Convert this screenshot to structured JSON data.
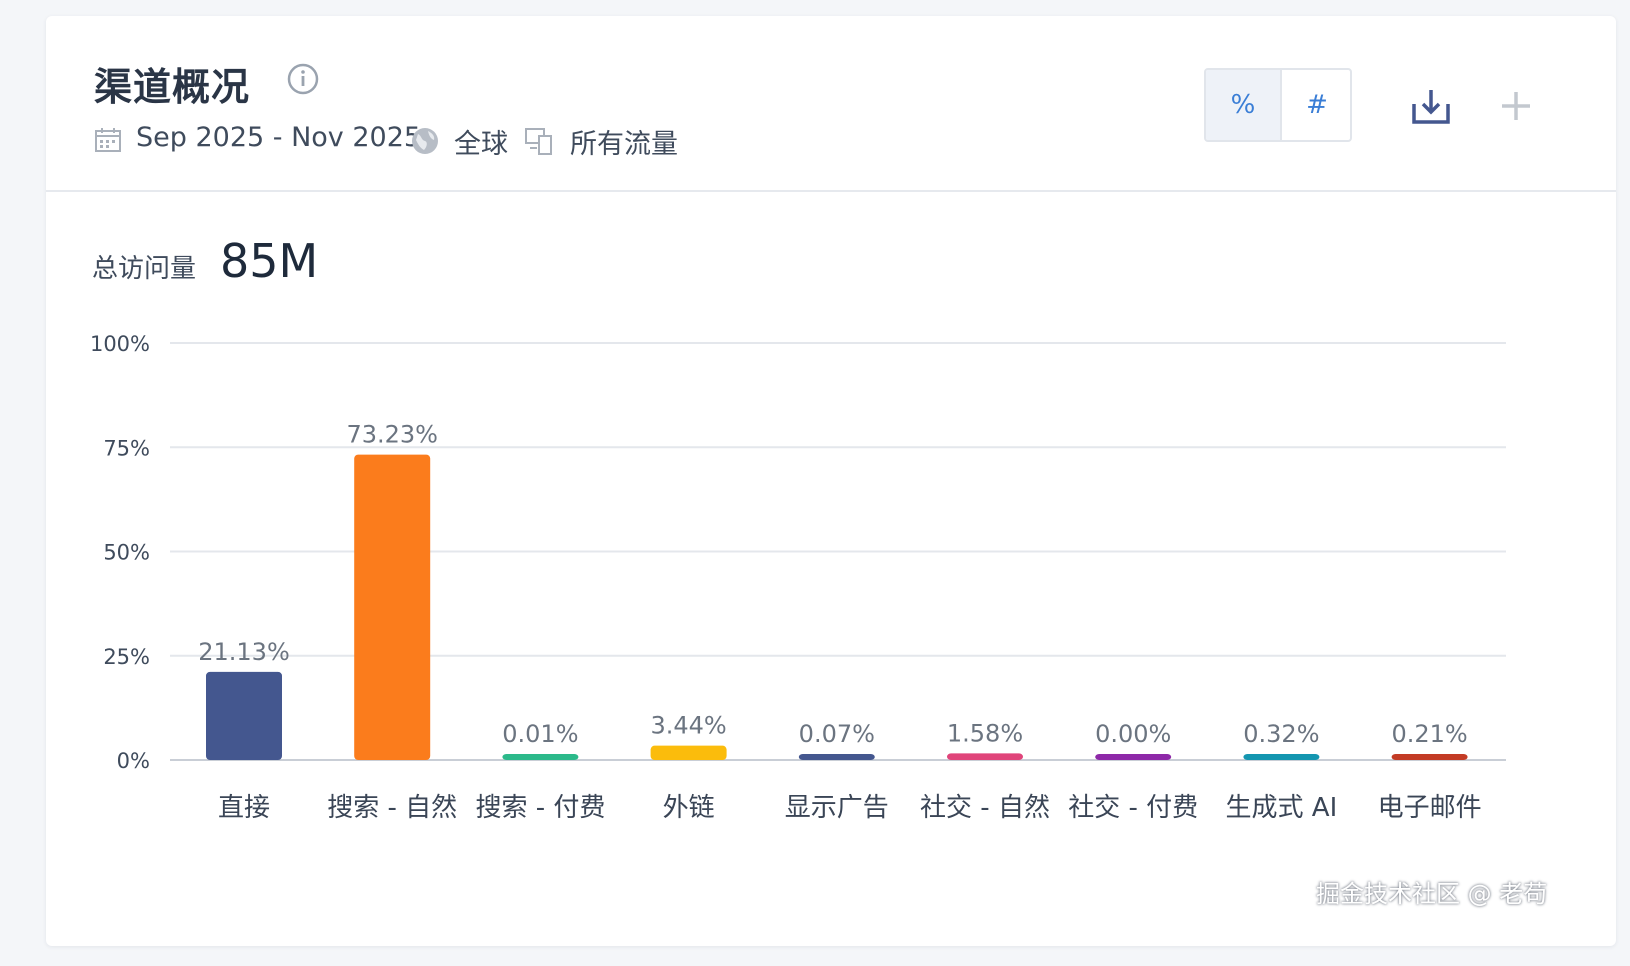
{
  "header": {
    "title": "渠道概况",
    "date_range": "Sep 2025 - Nov 2025",
    "region": "全球",
    "traffic_type": "所有流量",
    "toggle": {
      "percent_label": "%",
      "number_label": "#",
      "active": "percent"
    },
    "icons": [
      "calendar-icon",
      "globe-icon",
      "devices-icon",
      "info-icon",
      "download-icon",
      "plus-icon"
    ]
  },
  "summary": {
    "label": "总访问量",
    "value": "85M"
  },
  "chart_data": {
    "type": "bar",
    "categories": [
      "直接",
      "搜索 - 自然",
      "搜索 - 付费",
      "外链",
      "显示广告",
      "社交 - 自然",
      "社交 - 付费",
      "生成式 AI",
      "电子邮件"
    ],
    "values": [
      21.13,
      73.23,
      0.01,
      3.44,
      0.07,
      1.58,
      0.0,
      0.32,
      0.21
    ],
    "data_labels": [
      "21.13%",
      "73.23%",
      "0.01%",
      "3.44%",
      "0.07%",
      "1.58%",
      "0.00%",
      "0.32%",
      "0.21%"
    ],
    "colors": [
      "#44578f",
      "#fb7c1c",
      "#2bb98a",
      "#fbbc0c",
      "#44578f",
      "#e0447a",
      "#8e28a8",
      "#1496b0",
      "#c33b25"
    ],
    "y_ticks": [
      "0%",
      "25%",
      "50%",
      "75%",
      "100%"
    ],
    "ylim": [
      0,
      100
    ],
    "grid": true
  },
  "watermark": "掘金技术社区 @ 老苟"
}
